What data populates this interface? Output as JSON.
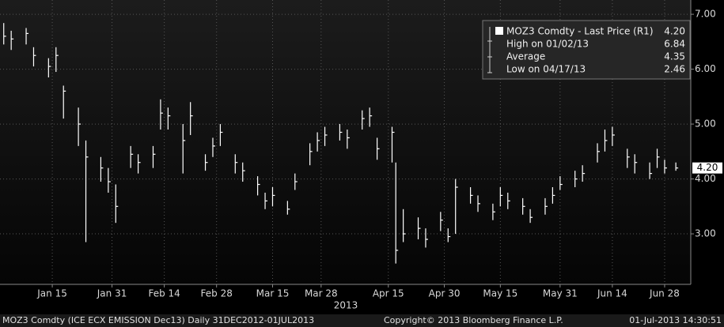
{
  "chart_data": {
    "type": "ohlc",
    "xlabel": "2013",
    "xlim": [
      1,
      186
    ],
    "xticks": [
      {
        "value": 15,
        "label": "Jan 15"
      },
      {
        "value": 31,
        "label": "Jan 31"
      },
      {
        "value": 45,
        "label": "Feb 14"
      },
      {
        "value": 59,
        "label": "Feb 28"
      },
      {
        "value": 74,
        "label": "Mar 15"
      },
      {
        "value": 87,
        "label": "Mar 28"
      },
      {
        "value": 105,
        "label": "Apr 15"
      },
      {
        "value": 120,
        "label": "Apr 30"
      },
      {
        "value": 135,
        "label": "May 15"
      },
      {
        "value": 151,
        "label": "May 31"
      },
      {
        "value": 165,
        "label": "Jun 14"
      },
      {
        "value": 179,
        "label": "Jun 28"
      }
    ],
    "ylim": [
      2.08,
      7.26
    ],
    "yticks": [
      {
        "value": 3,
        "label": "3.00"
      },
      {
        "value": 4,
        "label": "4.00"
      },
      {
        "value": 5,
        "label": "5.00"
      },
      {
        "value": 6,
        "label": "6.00"
      },
      {
        "value": 7,
        "label": "7.00"
      }
    ],
    "grid": true,
    "series": [
      {
        "name": "MOZ3 Comdty - Last Price (R1)",
        "color": "#ffffff",
        "x": [
          2,
          4,
          8,
          10,
          14,
          16,
          18,
          22,
          24,
          28,
          30,
          32,
          36,
          38,
          42,
          44,
          46,
          50,
          52,
          56,
          58,
          60,
          64,
          66,
          70,
          72,
          74,
          78,
          80,
          84,
          86,
          88,
          92,
          94,
          98,
          100,
          102,
          106,
          107,
          109,
          113,
          115,
          119,
          121,
          123,
          127,
          129,
          133,
          135,
          137,
          141,
          143,
          147,
          149,
          151,
          155,
          157,
          161,
          163,
          165,
          169,
          171,
          175,
          177,
          179,
          182
        ],
        "high": [
          6.84,
          6.7,
          6.75,
          6.4,
          6.2,
          6.4,
          5.7,
          5.3,
          4.7,
          4.4,
          4.2,
          3.9,
          4.6,
          4.45,
          4.6,
          5.45,
          5.3,
          5.0,
          5.4,
          4.45,
          4.75,
          5.0,
          4.45,
          4.3,
          4.05,
          3.75,
          3.85,
          3.6,
          4.1,
          4.65,
          4.85,
          4.95,
          5.0,
          4.9,
          5.25,
          5.3,
          4.75,
          4.95,
          4.3,
          3.45,
          3.3,
          3.1,
          3.4,
          3.1,
          4.0,
          3.85,
          3.7,
          3.55,
          3.85,
          3.75,
          3.65,
          3.45,
          3.65,
          3.85,
          4.05,
          4.15,
          4.25,
          4.65,
          4.9,
          4.95,
          4.55,
          4.45,
          4.3,
          4.55,
          4.35,
          4.3
        ],
        "low": [
          6.45,
          6.35,
          6.45,
          6.05,
          5.85,
          5.95,
          5.1,
          4.6,
          2.85,
          3.95,
          3.75,
          3.2,
          4.2,
          4.1,
          4.2,
          4.9,
          4.9,
          4.1,
          4.8,
          4.15,
          4.4,
          4.6,
          4.1,
          3.95,
          3.7,
          3.45,
          3.5,
          3.35,
          3.8,
          4.25,
          4.5,
          4.6,
          4.7,
          4.55,
          4.9,
          4.95,
          4.35,
          4.3,
          2.46,
          2.85,
          2.9,
          2.75,
          3.05,
          2.85,
          3.0,
          3.55,
          3.4,
          3.25,
          3.5,
          3.45,
          3.35,
          3.2,
          3.35,
          3.55,
          3.8,
          3.85,
          3.95,
          4.3,
          4.5,
          4.6,
          4.2,
          4.1,
          4.0,
          4.2,
          4.1,
          4.15
        ],
        "close": [
          6.6,
          6.55,
          6.65,
          6.25,
          6.05,
          6.25,
          5.6,
          5.0,
          4.4,
          4.2,
          3.95,
          3.5,
          4.45,
          4.3,
          4.45,
          5.2,
          5.15,
          4.7,
          5.15,
          4.3,
          4.6,
          4.85,
          4.3,
          4.15,
          3.9,
          3.6,
          3.7,
          3.45,
          3.95,
          4.5,
          4.7,
          4.8,
          4.85,
          4.75,
          5.1,
          5.15,
          4.55,
          4.85,
          2.7,
          3.0,
          3.1,
          2.9,
          3.25,
          2.95,
          3.85,
          3.7,
          3.55,
          3.4,
          3.7,
          3.6,
          3.5,
          3.3,
          3.5,
          3.7,
          3.9,
          4.0,
          4.1,
          4.5,
          4.7,
          4.8,
          4.4,
          4.3,
          4.1,
          4.4,
          4.2,
          4.2
        ]
      }
    ],
    "last_value": 4.2,
    "last_value_label": "4.20",
    "stats": {
      "labels": [
        "High on 01/02/13",
        "Average",
        "Low on 04/17/13"
      ],
      "values": [
        6.84,
        4.35,
        2.46
      ]
    },
    "footer": {
      "left": "MOZ3 Comdty (ICE ECX EMISSION  Dec13)  Daily 31DEC2012-01JUL2013",
      "center": "Copyright© 2013 Bloomberg Finance L.P.",
      "right": "01-Jul-2013 14:30:51"
    }
  }
}
